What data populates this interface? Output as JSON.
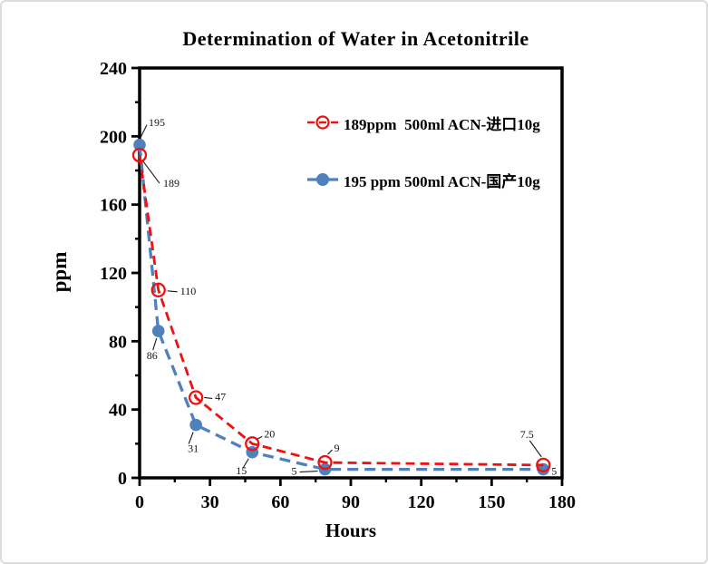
{
  "window": {
    "background": "#ffffff",
    "border_color": "#dcdcdc"
  },
  "chart_data": {
    "type": "line",
    "title": "Determination of Water in Acetonitrile",
    "xlabel": "Hours",
    "ylabel": "ppm",
    "xlim": [
      0,
      180
    ],
    "ylim": [
      0,
      240
    ],
    "x_ticks": [
      0,
      30,
      60,
      90,
      120,
      150,
      180
    ],
    "x_minor_ticks": [
      15,
      45,
      75,
      105,
      135,
      165
    ],
    "y_ticks": [
      0,
      40,
      80,
      120,
      160,
      200,
      240
    ],
    "y_minor_ticks": [
      20,
      60,
      100,
      140,
      180,
      220
    ],
    "grid": false,
    "legend_position": "inside-top-right",
    "axis_color": "#000000",
    "leader_color": "#1a1a1a",
    "x": [
      0,
      8,
      24,
      48,
      79,
      172
    ],
    "series": [
      {
        "name": "189ppm  500ml ACN-进口10g",
        "color": "#ee1111",
        "marker": "open-circle",
        "line_style": "dashed",
        "values": [
          189,
          110,
          47,
          20,
          9,
          7.5
        ],
        "point_labels": [
          "189",
          "110",
          "47",
          "20",
          "9",
          "7.5"
        ]
      },
      {
        "name": "195 ppm 500ml ACN-国产10g",
        "color": "#4f81bd",
        "marker": "filled-circle",
        "line_style": "dashed",
        "values": [
          195,
          86,
          31,
          15,
          5,
          5
        ],
        "point_labels": [
          "195",
          "86",
          "31",
          "15",
          "5",
          "5"
        ]
      }
    ]
  }
}
